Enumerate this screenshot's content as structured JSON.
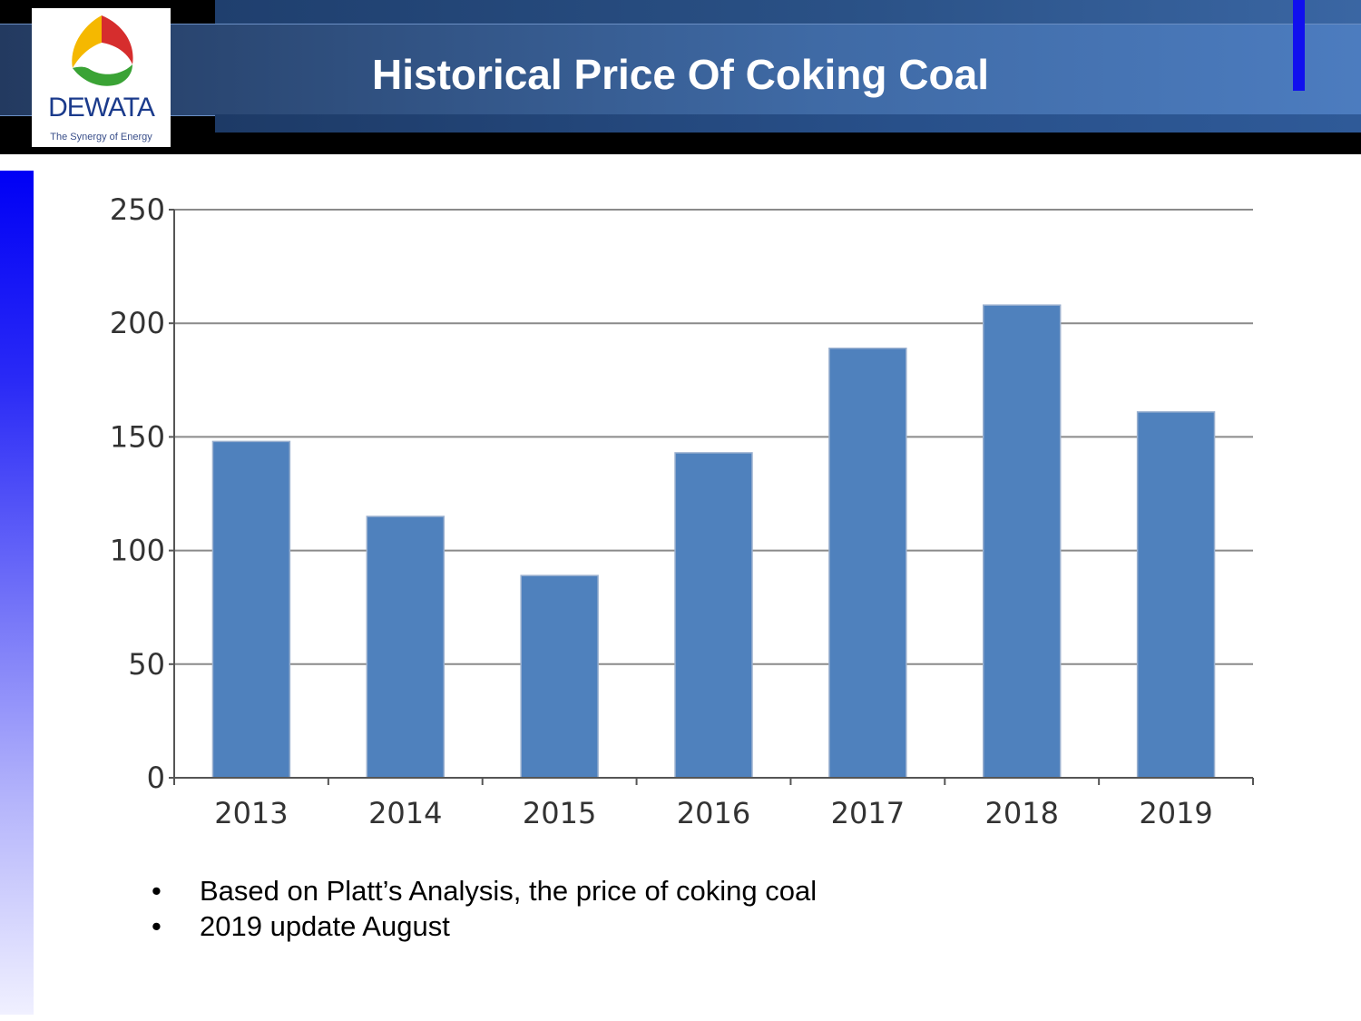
{
  "header": {
    "title": "Historical Price Of Coking Coal"
  },
  "logo": {
    "name": "DEWATA",
    "tagline": "The Synergy of Energy",
    "colors": [
      "#f5b800",
      "#d62d2d",
      "#3aa335"
    ]
  },
  "chart_data": {
    "type": "bar",
    "title": "",
    "xlabel": "",
    "ylabel": "",
    "categories": [
      "2013",
      "2014",
      "2015",
      "2016",
      "2017",
      "2018",
      "2019"
    ],
    "values": [
      148,
      115,
      89,
      143,
      189,
      208,
      161
    ],
    "ylim": [
      0,
      250
    ],
    "yticks": [
      0,
      50,
      100,
      150,
      200,
      250
    ],
    "grid": true,
    "legend": "none",
    "bar_color": "#4f81bd"
  },
  "notes": [
    "Based on Platt’s Analysis, the price of coking coal",
    "2019 update August"
  ],
  "bullet": "•"
}
